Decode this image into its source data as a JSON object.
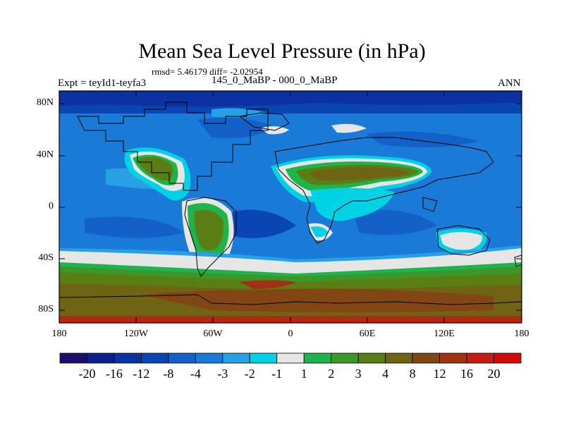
{
  "header": {
    "title": "Mean Sea Level Pressure (in hPa)",
    "stats": "rmsd= 5.46179 diff= -2.02954",
    "expt": "Expt = teyId1-teyfa3",
    "subtitle": "145_0_MaBP - 000_0_MaBP",
    "season": "ANN"
  },
  "map": {
    "lat_ticks": [
      "80N",
      "40N",
      "0",
      "40S",
      "80S"
    ],
    "lon_ticks": [
      "180",
      "120W",
      "60W",
      "0",
      "60E",
      "120E",
      "180"
    ],
    "lat_range": [
      -90,
      90
    ],
    "lon_range": [
      -180,
      180
    ]
  },
  "colorbar": {
    "labels": [
      "-20",
      "-16",
      "-12",
      "-8",
      "-4",
      "-3",
      "-2",
      "-1",
      "1",
      "2",
      "3",
      "4",
      "8",
      "12",
      "16",
      "20"
    ],
    "colors": [
      "#1b0f6e",
      "#0d1f8c",
      "#0a32a0",
      "#0a45b4",
      "#1260c8",
      "#1a7ad7",
      "#28a0e6",
      "#00d2e6",
      "#e6e6e6",
      "#1eb44b",
      "#3c9628",
      "#5a7d14",
      "#6e6414",
      "#824614",
      "#a03214",
      "#c31e0f",
      "#d20a0a"
    ]
  }
}
